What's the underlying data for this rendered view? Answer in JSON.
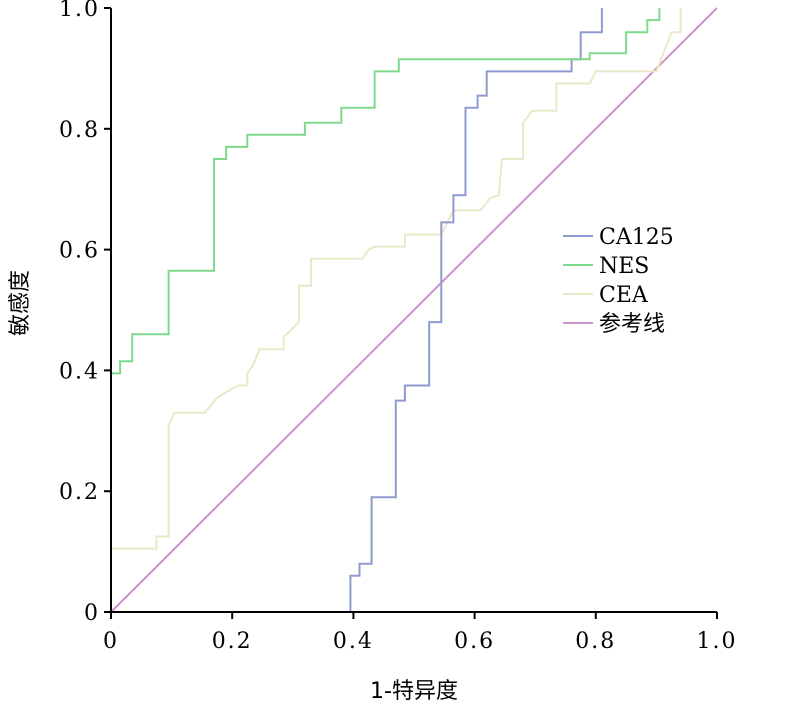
{
  "chart_data": {
    "type": "line",
    "title": "",
    "xlabel": "1-特异度",
    "ylabel": "敏感度",
    "xlim": [
      0,
      1
    ],
    "ylim": [
      0,
      1
    ],
    "x_ticks": [
      "0",
      "0.2",
      "0.4",
      "0.6",
      "0.8",
      "1.0"
    ],
    "y_ticks": [
      "0",
      "0.2",
      "0.4",
      "0.6",
      "0.8",
      "1.0"
    ],
    "grid": false,
    "legend_position": "right-middle",
    "series": [
      {
        "name": "CA125",
        "color": "#8f9bd0",
        "points": [
          [
            0,
            0
          ],
          [
            0.395,
            0
          ],
          [
            0.395,
            0.06
          ],
          [
            0.41,
            0.06
          ],
          [
            0.41,
            0.08
          ],
          [
            0.43,
            0.08
          ],
          [
            0.43,
            0.19
          ],
          [
            0.47,
            0.19
          ],
          [
            0.47,
            0.35
          ],
          [
            0.485,
            0.35
          ],
          [
            0.485,
            0.375
          ],
          [
            0.525,
            0.375
          ],
          [
            0.525,
            0.48
          ],
          [
            0.545,
            0.48
          ],
          [
            0.545,
            0.645
          ],
          [
            0.565,
            0.645
          ],
          [
            0.565,
            0.69
          ],
          [
            0.585,
            0.69
          ],
          [
            0.585,
            0.835
          ],
          [
            0.605,
            0.835
          ],
          [
            0.605,
            0.855
          ],
          [
            0.62,
            0.855
          ],
          [
            0.62,
            0.895
          ],
          [
            0.76,
            0.895
          ],
          [
            0.76,
            0.915
          ],
          [
            0.775,
            0.915
          ],
          [
            0.775,
            0.96
          ],
          [
            0.81,
            0.96
          ],
          [
            0.81,
            1.0
          ]
        ]
      },
      {
        "name": "NES",
        "color": "#7fd98a",
        "points": [
          [
            0,
            0
          ],
          [
            0,
            0.395
          ],
          [
            0.015,
            0.395
          ],
          [
            0.015,
            0.415
          ],
          [
            0.035,
            0.415
          ],
          [
            0.035,
            0.46
          ],
          [
            0.095,
            0.46
          ],
          [
            0.095,
            0.565
          ],
          [
            0.17,
            0.565
          ],
          [
            0.17,
            0.75
          ],
          [
            0.19,
            0.75
          ],
          [
            0.19,
            0.77
          ],
          [
            0.225,
            0.77
          ],
          [
            0.225,
            0.79
          ],
          [
            0.32,
            0.79
          ],
          [
            0.32,
            0.81
          ],
          [
            0.38,
            0.81
          ],
          [
            0.38,
            0.835
          ],
          [
            0.435,
            0.835
          ],
          [
            0.435,
            0.895
          ],
          [
            0.475,
            0.895
          ],
          [
            0.475,
            0.915
          ],
          [
            0.79,
            0.915
          ],
          [
            0.79,
            0.925
          ],
          [
            0.85,
            0.925
          ],
          [
            0.85,
            0.96
          ],
          [
            0.885,
            0.96
          ],
          [
            0.885,
            0.98
          ],
          [
            0.905,
            0.98
          ],
          [
            0.905,
            1.0
          ]
        ]
      },
      {
        "name": "CEA",
        "color": "#ebe8c8",
        "points": [
          [
            0,
            0
          ],
          [
            0,
            0.105
          ],
          [
            0.075,
            0.105
          ],
          [
            0.075,
            0.125
          ],
          [
            0.095,
            0.125
          ],
          [
            0.095,
            0.31
          ],
          [
            0.105,
            0.33
          ],
          [
            0.155,
            0.33
          ],
          [
            0.175,
            0.355
          ],
          [
            0.2,
            0.37
          ],
          [
            0.21,
            0.375
          ],
          [
            0.225,
            0.375
          ],
          [
            0.225,
            0.395
          ],
          [
            0.235,
            0.41
          ],
          [
            0.245,
            0.435
          ],
          [
            0.285,
            0.435
          ],
          [
            0.285,
            0.455
          ],
          [
            0.31,
            0.48
          ],
          [
            0.31,
            0.54
          ],
          [
            0.33,
            0.54
          ],
          [
            0.33,
            0.585
          ],
          [
            0.415,
            0.585
          ],
          [
            0.425,
            0.6
          ],
          [
            0.435,
            0.605
          ],
          [
            0.485,
            0.605
          ],
          [
            0.485,
            0.625
          ],
          [
            0.53,
            0.625
          ],
          [
            0.53,
            0.625
          ],
          [
            0.545,
            0.625
          ],
          [
            0.565,
            0.665
          ],
          [
            0.61,
            0.665
          ],
          [
            0.625,
            0.685
          ],
          [
            0.64,
            0.69
          ],
          [
            0.645,
            0.75
          ],
          [
            0.68,
            0.75
          ],
          [
            0.68,
            0.81
          ],
          [
            0.695,
            0.83
          ],
          [
            0.735,
            0.83
          ],
          [
            0.735,
            0.875
          ],
          [
            0.79,
            0.875
          ],
          [
            0.8,
            0.895
          ],
          [
            0.9,
            0.895
          ],
          [
            0.925,
            0.96
          ],
          [
            0.94,
            0.96
          ],
          [
            0.94,
            1.0
          ]
        ]
      },
      {
        "name": "参考线",
        "color": "#c893c8",
        "points": [
          [
            0,
            0
          ],
          [
            1,
            1
          ]
        ]
      }
    ]
  }
}
